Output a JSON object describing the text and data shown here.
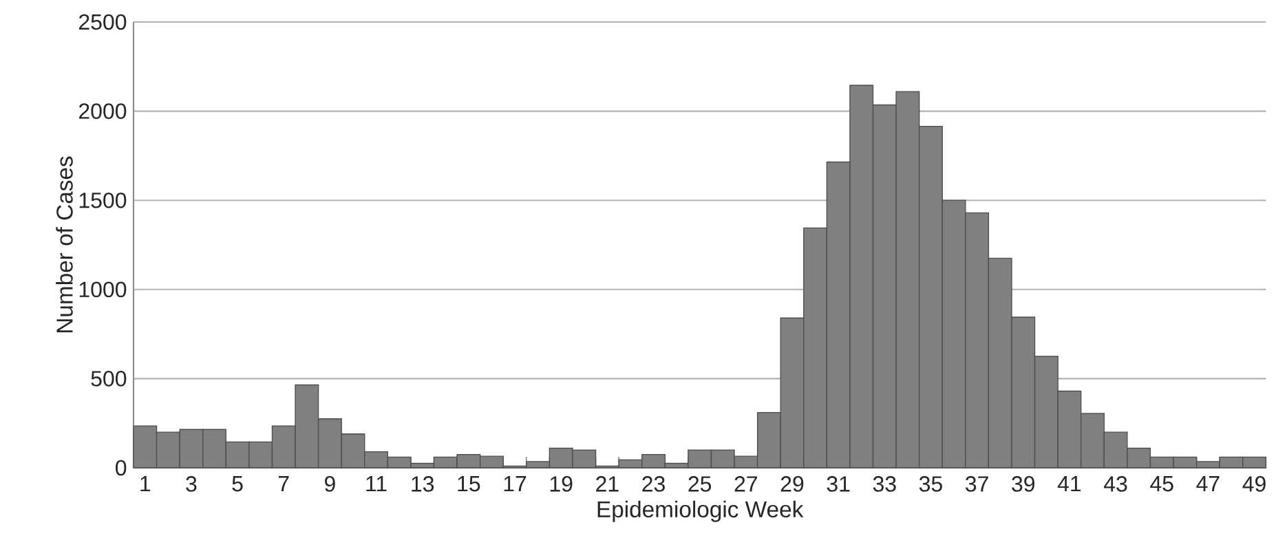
{
  "chart_data": {
    "type": "bar",
    "xlabel": "Epidemiologic Week",
    "ylabel": "Number of Cases",
    "categories": [
      "1",
      null,
      "3",
      null,
      "5",
      null,
      "7",
      null,
      "9",
      null,
      "11",
      null,
      "13",
      null,
      "15",
      null,
      "17",
      null,
      "19",
      null,
      "21",
      null,
      "23",
      null,
      "25",
      null,
      "27",
      null,
      "29",
      null,
      "31",
      null,
      "33",
      null,
      "35",
      null,
      "37",
      null,
      "39",
      null,
      "41",
      null,
      "43",
      null,
      "45",
      null,
      "47",
      null,
      "49"
    ],
    "values": [
      235,
      200,
      215,
      215,
      145,
      145,
      235,
      465,
      275,
      190,
      90,
      60,
      25,
      60,
      75,
      65,
      10,
      35,
      110,
      100,
      10,
      45,
      75,
      25,
      100,
      100,
      65,
      310,
      840,
      1345,
      1715,
      2145,
      2035,
      2110,
      1915,
      1500,
      1430,
      1175,
      845,
      625,
      430,
      305,
      200,
      110,
      60,
      60,
      35,
      60,
      60
    ],
    "color": "#808080",
    "ylim": [
      0,
      2500
    ],
    "yticks": [
      0,
      500,
      1000,
      1500,
      2000,
      2500
    ],
    "grid": "y"
  }
}
